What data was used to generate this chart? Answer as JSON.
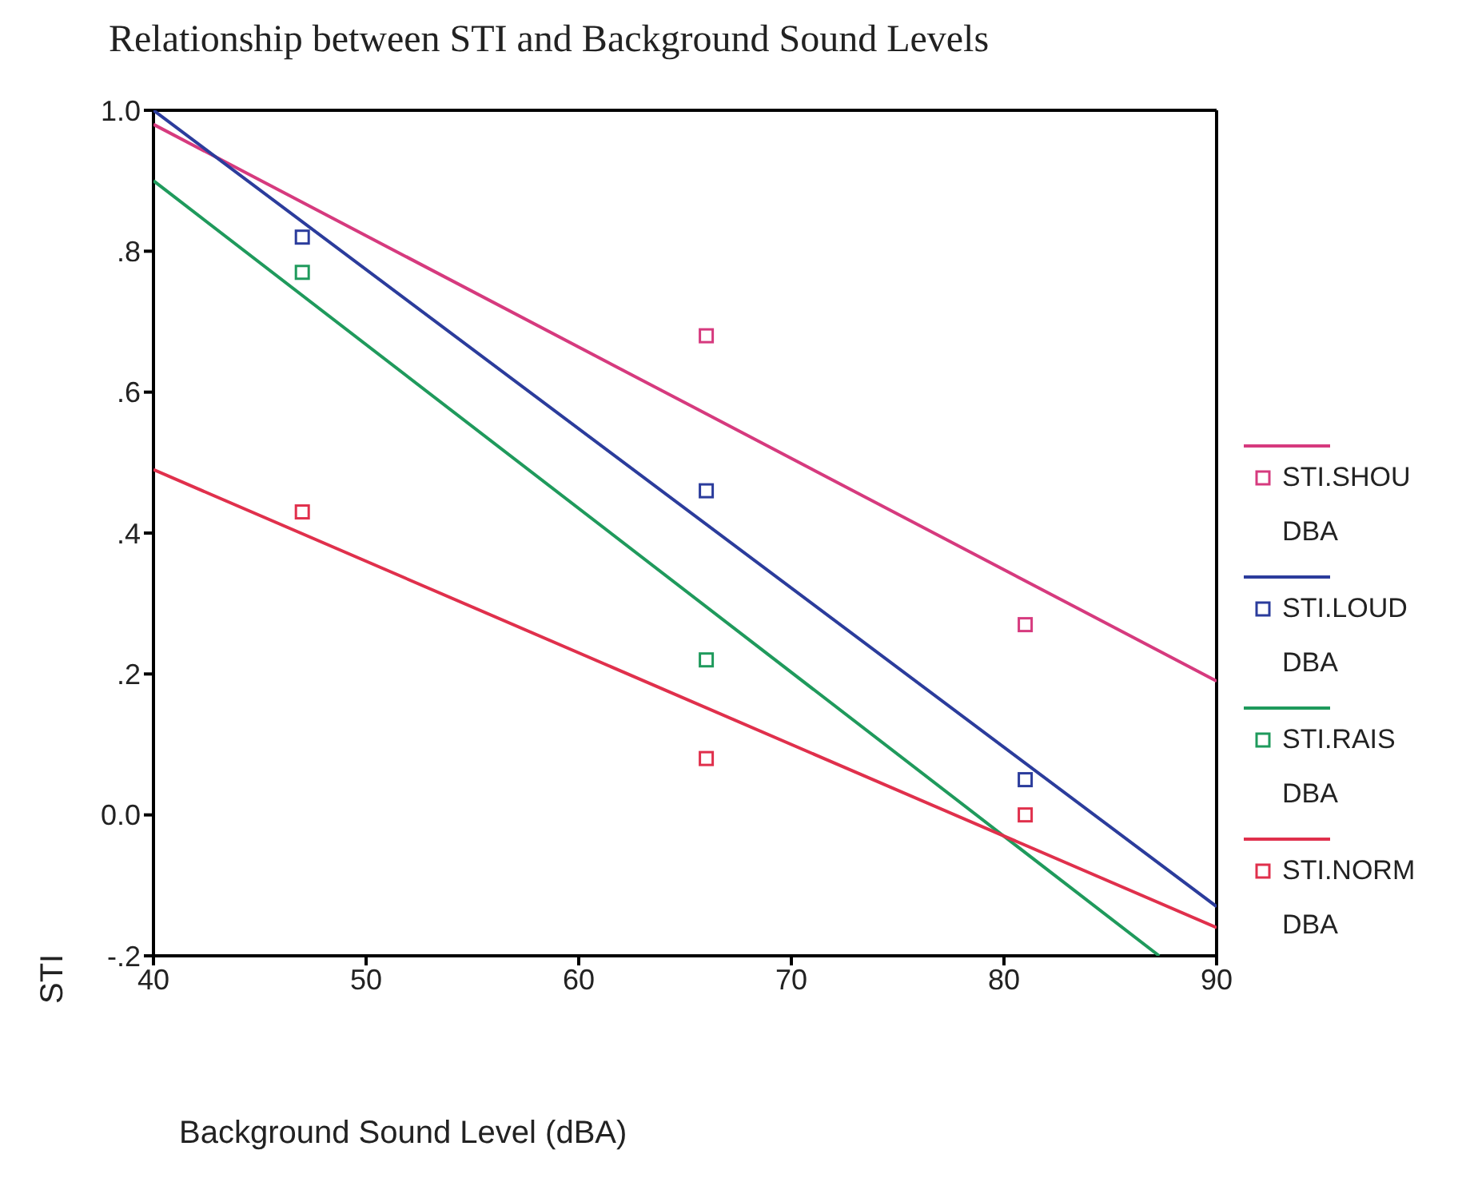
{
  "chart_data": {
    "type": "scatter",
    "title": "Relationship between STI and Background Sound Levels",
    "xlabel": "Background Sound Level (dBA)",
    "ylabel": "STI",
    "x": [
      47,
      66,
      81
    ],
    "series": [
      {
        "name": "STI.SHOU DBA",
        "color": "#d63a7e",
        "values": [
          null,
          0.68,
          0.27
        ]
      },
      {
        "name": "STI.LOUD DBA",
        "color": "#2b3c9c",
        "values": [
          0.82,
          0.46,
          0.05
        ]
      },
      {
        "name": "STI.RAIS DBA",
        "color": "#1f9a5c",
        "values": [
          0.77,
          0.22,
          null
        ]
      },
      {
        "name": "STI.NORM DBA",
        "color": "#e0304c",
        "values": [
          0.43,
          0.08,
          0.0
        ]
      },
      {
        "type": "line",
        "marker": "none",
        "color": "#d63a7e",
        "x": [
          40,
          90
        ],
        "values": [
          0.98,
          0.19
        ]
      },
      {
        "type": "line",
        "marker": "none",
        "color": "#2b3c9c",
        "x": [
          40,
          90
        ],
        "values": [
          1.0,
          -0.13
        ]
      },
      {
        "type": "line",
        "marker": "none",
        "color": "#1f9a5c",
        "x": [
          40,
          87.3
        ],
        "values": [
          0.9,
          -0.2
        ]
      },
      {
        "type": "line",
        "marker": "none",
        "color": "#e0304c",
        "x": [
          40,
          90
        ],
        "values": [
          0.49,
          -0.16
        ]
      }
    ],
    "xlim": [
      40,
      90
    ],
    "xticks": [
      40,
      50,
      60,
      70,
      80,
      90
    ],
    "ylim": [
      -0.2,
      1.0
    ],
    "yticks": [
      {
        "value": -0.2,
        "label": "-.2"
      },
      {
        "value": 0,
        "label": "0.0"
      },
      {
        "value": 0.2,
        "label": ".2"
      },
      {
        "value": 0.4,
        "label": ".4"
      },
      {
        "value": 0.6,
        "label": ".6"
      },
      {
        "value": 0.8,
        "label": ".8"
      },
      {
        "value": 1.0,
        "label": "1.0"
      }
    ],
    "grid": false,
    "legend": "right",
    "marker": "square"
  }
}
